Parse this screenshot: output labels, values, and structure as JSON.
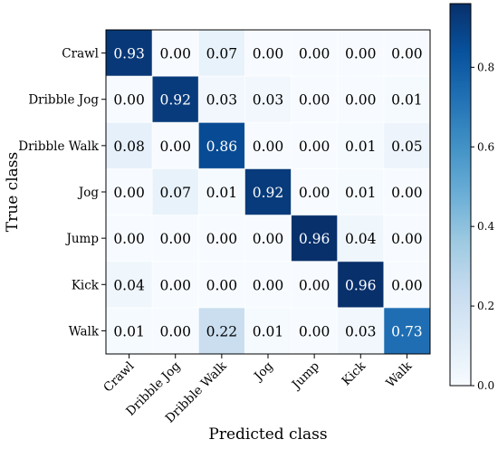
{
  "chart_data": {
    "type": "heatmap",
    "title": "",
    "xlabel": "Predicted class",
    "ylabel": "True class",
    "row_labels": [
      "Crawl",
      "Dribble Jog",
      "Dribble Walk",
      "Jog",
      "Jump",
      "Kick",
      "Walk"
    ],
    "col_labels": [
      "Crawl",
      "Dribble Jog",
      "Dribble Walk",
      "Jog",
      "Jump",
      "Kick",
      "Walk"
    ],
    "values": [
      [
        0.93,
        0.0,
        0.07,
        0.0,
        0.0,
        0.0,
        0.0
      ],
      [
        0.0,
        0.92,
        0.03,
        0.03,
        0.0,
        0.0,
        0.01
      ],
      [
        0.08,
        0.0,
        0.86,
        0.0,
        0.0,
        0.01,
        0.05
      ],
      [
        0.0,
        0.07,
        0.01,
        0.92,
        0.0,
        0.01,
        0.0
      ],
      [
        0.0,
        0.0,
        0.0,
        0.0,
        0.96,
        0.04,
        0.0
      ],
      [
        0.04,
        0.0,
        0.0,
        0.0,
        0.0,
        0.96,
        0.0
      ],
      [
        0.01,
        0.0,
        0.22,
        0.01,
        0.0,
        0.03,
        0.73
      ]
    ],
    "colorbar": {
      "range": [
        0,
        0.96
      ],
      "ticks": [
        0.0,
        0.2,
        0.4,
        0.6,
        0.8
      ],
      "tick_labels": [
        "0.0",
        "0.2",
        "0.4",
        "0.6",
        "0.8"
      ]
    },
    "colormap": "Blues",
    "grid": true
  }
}
